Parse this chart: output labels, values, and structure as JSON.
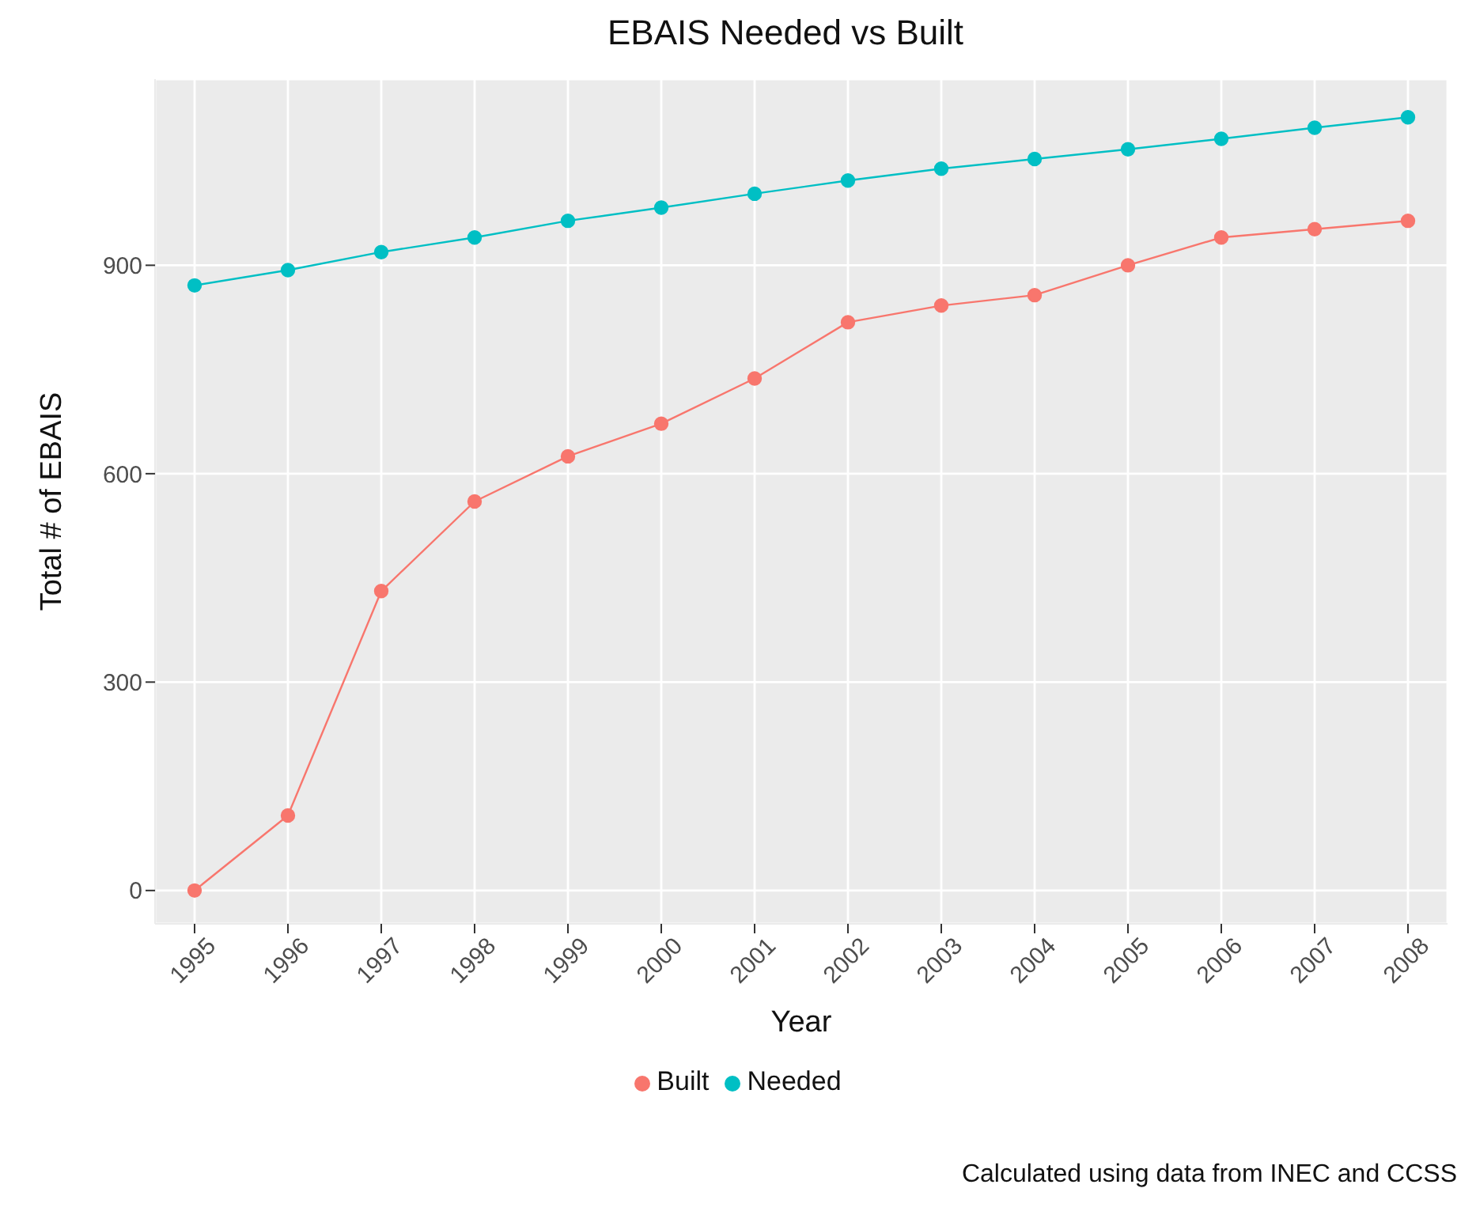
{
  "chart_data": {
    "type": "line",
    "title": "EBAIS Needed vs Built",
    "xlabel": "Year",
    "ylabel": "Total # of EBAIS",
    "categories": [
      "1995",
      "1996",
      "1997",
      "1998",
      "1999",
      "2000",
      "2001",
      "2002",
      "2003",
      "2004",
      "2005",
      "2006",
      "2007",
      "2008"
    ],
    "series": [
      {
        "name": "Needed",
        "color": "#00bfc4",
        "values": [
          871,
          893,
          919,
          940,
          964,
          983,
          1003,
          1022,
          1039,
          1053,
          1067,
          1082,
          1098,
          1113
        ]
      },
      {
        "name": "Built",
        "color": "#f8766d",
        "values": [
          0,
          108,
          431,
          560,
          625,
          672,
          737,
          818,
          842,
          857,
          900,
          940,
          952,
          964
        ]
      }
    ],
    "ylim": [
      -48,
      1168
    ],
    "yticks": [
      0,
      300,
      600,
      900
    ],
    "grid": true,
    "legend": "bottom",
    "marker": "circle",
    "line_style": "solid",
    "annotations": [
      "Calculated using data from INEC and CCSS"
    ]
  }
}
